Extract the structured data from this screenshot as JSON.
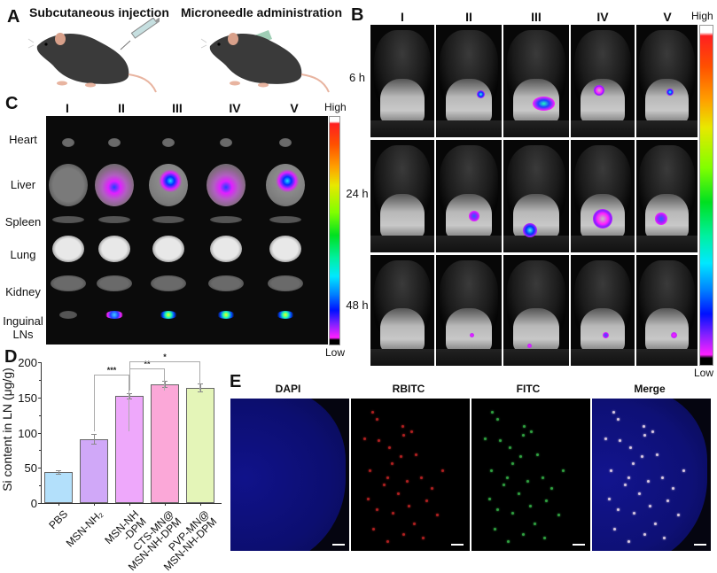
{
  "panel_a": {
    "letter": "A",
    "left_title": "Subcutaneous injection",
    "right_title": "Microneedle administration"
  },
  "panel_b": {
    "letter": "B",
    "columns": [
      "I",
      "II",
      "III",
      "IV",
      "V"
    ],
    "rows": [
      "6 h",
      "24 h",
      "48 h"
    ],
    "colorbar_high": "High",
    "colorbar_low": "Low"
  },
  "panel_c": {
    "letter": "C",
    "columns": [
      "I",
      "II",
      "III",
      "IV",
      "V"
    ],
    "rows": [
      "Heart",
      "Liver",
      "Spleen",
      "Lung",
      "Kidney",
      "Inguinal LNs"
    ],
    "colorbar_high": "High",
    "colorbar_low": "Low"
  },
  "panel_d": {
    "letter": "D"
  },
  "panel_e": {
    "letter": "E",
    "channels": [
      "DAPI",
      "RBITC",
      "FITC",
      "Merge"
    ]
  },
  "chart_data": {
    "type": "bar",
    "title": "",
    "xlabel": "",
    "ylabel": "Si content in LN (μg/g)",
    "ylim": [
      0,
      200
    ],
    "yticks": [
      0,
      50,
      100,
      150,
      200
    ],
    "categories": [
      "PBS",
      "MSN-NH2",
      "MSN-NH-DPM",
      "CTS-MN@MSN-NH-DPM",
      "PVP-MN@MSN-NH-DPM"
    ],
    "category_labels": [
      [
        "PBS"
      ],
      [
        "MSN-NH₂"
      ],
      [
        "MSN-NH",
        "-DPM"
      ],
      [
        "CTS-MN@",
        "MSN-NH-DPM"
      ],
      [
        "PVP-MN@",
        "MSN-NH-DPM"
      ]
    ],
    "values": [
      44,
      91,
      152,
      169,
      164
    ],
    "errors": [
      3,
      7,
      4,
      4,
      6
    ],
    "colors": [
      "#b3e0fb",
      "#d0a8f8",
      "#eea8fb",
      "#fba8d8",
      "#e4f5b8"
    ],
    "significance": [
      {
        "from": "MSN-NH2",
        "to": "MSN-NH-DPM",
        "label": "***"
      },
      {
        "from": "MSN-NH-DPM",
        "to": "CTS-MN@MSN-NH-DPM",
        "label": "**"
      },
      {
        "from": "MSN-NH-DPM",
        "to": "PVP-MN@MSN-NH-DPM",
        "label": "*"
      }
    ],
    "grid": false,
    "legend": null
  }
}
